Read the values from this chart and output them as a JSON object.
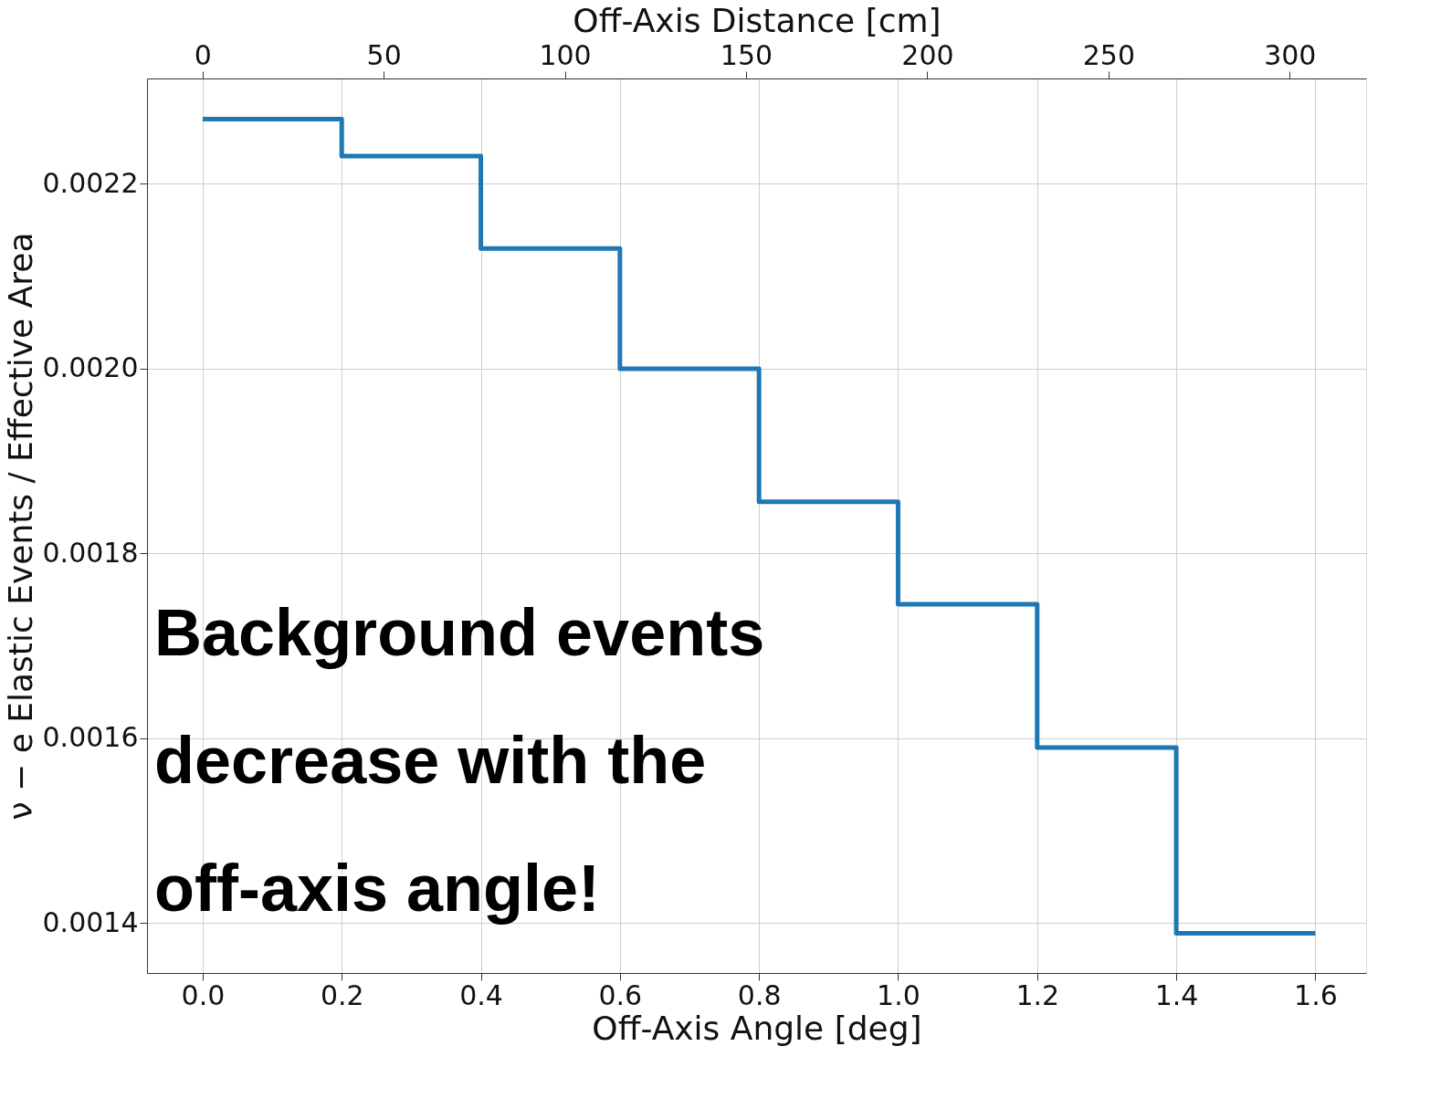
{
  "chart_data": {
    "type": "step",
    "xlabel": "Off-Axis Angle [deg]",
    "x2label": "Off-Axis Distance [cm]",
    "ylabel": "ν − e Elastic Events / Effective Area",
    "x": [
      0,
      0.2,
      0.4,
      0.6,
      0.8,
      1.0,
      1.2,
      1.4,
      1.6
    ],
    "series": [
      {
        "color": "#1f77b4",
        "values": [
          0.00227,
          0.00223,
          0.00213,
          0.002,
          0.001856,
          0.001745,
          0.00159,
          0.001389,
          0.001389
        ]
      }
    ],
    "xlim": [
      -0.08,
      1.673
    ],
    "xticks": [
      {
        "value": 0,
        "label": "0.0"
      },
      0.2,
      0.4,
      0.6,
      0.8,
      {
        "value": 1,
        "label": "1.0"
      },
      1.2,
      1.4,
      1.6
    ],
    "x2lim": [
      -15.3,
      321.1
    ],
    "x2ticks": [
      0,
      50,
      100,
      150,
      200,
      250,
      300
    ],
    "ylim": [
      0.001346,
      0.002314
    ],
    "yticks": [
      0.0014,
      0.0016,
      0.0018,
      {
        "value": 0.002,
        "label": "0.0020"
      },
      0.0022
    ],
    "grid": true,
    "line_style": "solid",
    "annotations": [
      "Background events\ndecrease with the\noff-axis angle!"
    ]
  }
}
